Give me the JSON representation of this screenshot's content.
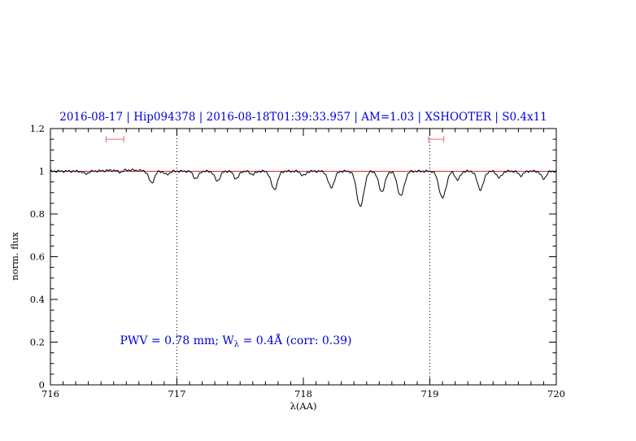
{
  "chart_data": {
    "type": "line",
    "title": "2016-08-17 | Hip094378 | 2016-08-18T01:39:33.957 | AM=1.03 | XSHOOTER | S0.4x11",
    "title_color": "#0000dd",
    "xlabel": "λ(AA)",
    "ylabel": "norm. flux",
    "xlim": [
      716,
      720
    ],
    "ylim": [
      0,
      1.2
    ],
    "x_major_ticks": [
      716,
      717,
      718,
      719,
      720
    ],
    "x_tick_labels": [
      "716",
      "717",
      "718",
      "719",
      "720"
    ],
    "x_minor_step": 0.1,
    "y_major_ticks": [
      0,
      0.2,
      0.4,
      0.6,
      0.8,
      1,
      1.2
    ],
    "y_tick_labels": [
      "0",
      "0.2",
      "0.4",
      "0.6",
      "0.8",
      "1",
      "1.2"
    ],
    "y_minor_step": 0.05,
    "dotted_vlines_x": [
      717,
      719
    ],
    "continuum": {
      "y": 1.0,
      "color": "#cc3333"
    },
    "spectrum": {
      "color": "#000000",
      "continuum_level": 1.0,
      "absorption_lines": [
        {
          "center": 716.28,
          "depth": 0.012,
          "sigma": 0.02
        },
        {
          "center": 716.55,
          "depth": 0.01,
          "sigma": 0.02
        },
        {
          "center": 716.8,
          "depth": 0.055,
          "sigma": 0.022
        },
        {
          "center": 716.92,
          "depth": 0.015,
          "sigma": 0.02
        },
        {
          "center": 717.15,
          "depth": 0.035,
          "sigma": 0.02
        },
        {
          "center": 717.32,
          "depth": 0.045,
          "sigma": 0.022
        },
        {
          "center": 717.47,
          "depth": 0.035,
          "sigma": 0.02
        },
        {
          "center": 717.6,
          "depth": 0.015,
          "sigma": 0.02
        },
        {
          "center": 717.77,
          "depth": 0.085,
          "sigma": 0.025
        },
        {
          "center": 718.0,
          "depth": 0.02,
          "sigma": 0.02
        },
        {
          "center": 718.22,
          "depth": 0.075,
          "sigma": 0.025
        },
        {
          "center": 718.45,
          "depth": 0.165,
          "sigma": 0.028
        },
        {
          "center": 718.62,
          "depth": 0.095,
          "sigma": 0.025
        },
        {
          "center": 718.77,
          "depth": 0.115,
          "sigma": 0.027
        },
        {
          "center": 719.1,
          "depth": 0.125,
          "sigma": 0.028
        },
        {
          "center": 719.22,
          "depth": 0.04,
          "sigma": 0.02
        },
        {
          "center": 719.4,
          "depth": 0.085,
          "sigma": 0.025
        },
        {
          "center": 719.55,
          "depth": 0.03,
          "sigma": 0.02
        },
        {
          "center": 719.72,
          "depth": 0.02,
          "sigma": 0.02
        },
        {
          "center": 719.9,
          "depth": 0.035,
          "sigma": 0.02
        }
      ]
    },
    "range_markers": [
      {
        "x_start": 716.44,
        "x_end": 716.58,
        "y": 1.15,
        "color": "#e07070"
      },
      {
        "x_start": 718.99,
        "x_end": 719.11,
        "y": 1.15,
        "color": "#e07070"
      }
    ],
    "annotation": {
      "prefix": "PWV = 0.78 mm; W",
      "subscript": "λ",
      "suffix": " = 0.4Å (corr: 0.39)",
      "x": 716.55,
      "y": 0.19,
      "color": "#0000dd"
    }
  }
}
